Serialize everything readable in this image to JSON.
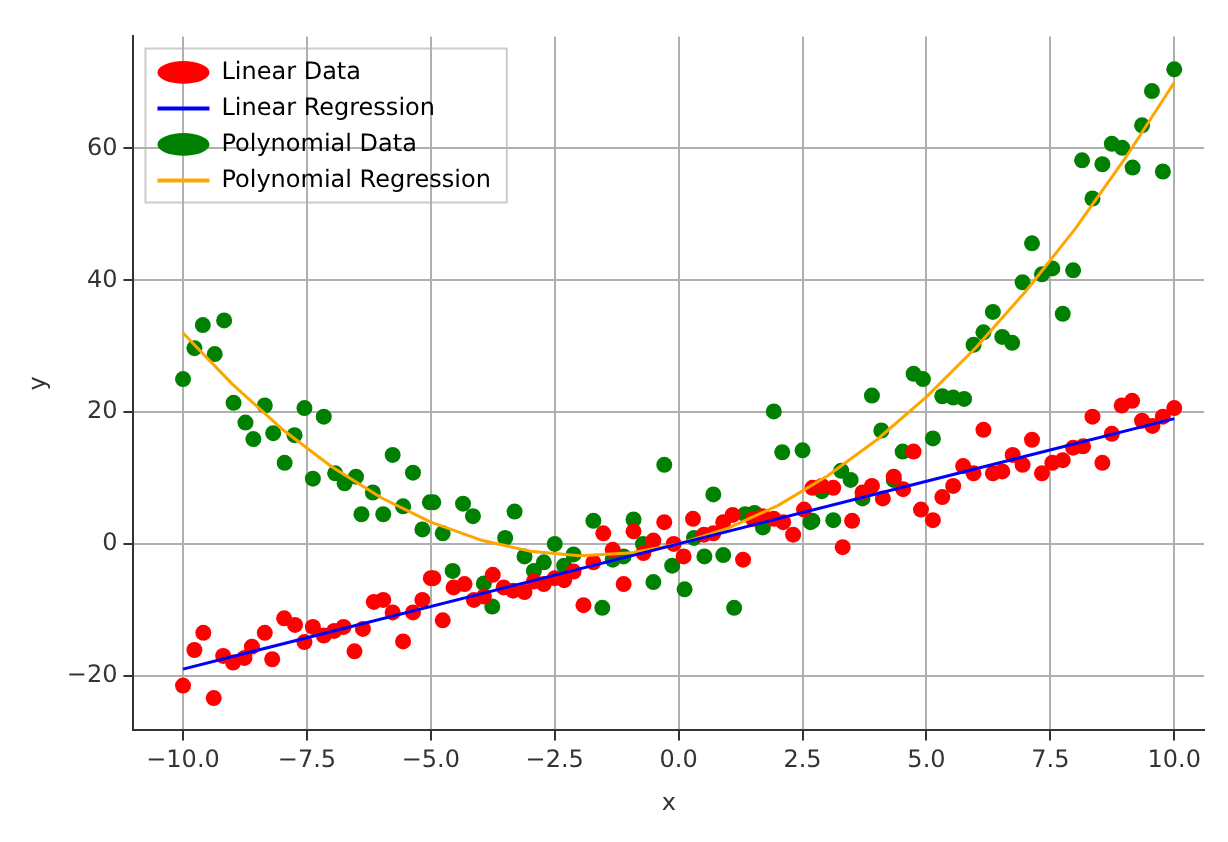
{
  "chart_data": {
    "type": "scatter",
    "xlabel": "x",
    "ylabel": "y",
    "xlim": [
      -11,
      10.6
    ],
    "ylim": [
      -28.3,
      77
    ],
    "xticks": [
      {
        "value": -10,
        "label": "−10.0"
      },
      {
        "value": -7.5,
        "label": "−7.5"
      },
      {
        "value": -5,
        "label": "−5.0"
      },
      {
        "value": -2.5,
        "label": "−2.5"
      },
      {
        "value": 0,
        "label": "0.0"
      },
      {
        "value": 2.5,
        "label": "2.5"
      },
      {
        "value": 5,
        "label": "5.0"
      },
      {
        "value": 7.5,
        "label": "7.5"
      },
      {
        "value": 10,
        "label": "10.0"
      }
    ],
    "yticks": [
      {
        "value": -20,
        "label": "−20"
      },
      0,
      20,
      40,
      60
    ],
    "grid": true,
    "legend": "top left",
    "series": [
      {
        "name": "Linear Data",
        "type": "scatter",
        "marker": "circle",
        "color": "#ff0000",
        "x": [
          -10,
          -9.77,
          -9.59,
          -9.38,
          -9.19,
          -8.99,
          -8.76,
          -8.61,
          -8.35,
          -8.2,
          -7.96,
          -7.74,
          -7.55,
          -7.38,
          -7.16,
          -6.95,
          -6.76,
          -6.54,
          -6.37,
          -6.15,
          -5.96,
          -5.77,
          -5.56,
          -5.36,
          -5.17,
          -5.0,
          -4.95,
          -4.76,
          -4.54,
          -4.32,
          -4.13,
          -3.93,
          -3.75,
          -3.53,
          -3.34,
          -3.11,
          -2.92,
          -2.72,
          -2.5,
          -2.31,
          -2.12,
          -1.92,
          -1.72,
          -1.52,
          -1.33,
          -1.11,
          -0.91,
          -0.71,
          -0.51,
          -0.29,
          -0.1,
          0.1,
          0.29,
          0.51,
          0.7,
          0.9,
          1.09,
          1.3,
          1.5,
          1.7,
          1.92,
          2.11,
          2.31,
          2.53,
          2.7,
          2.89,
          3.12,
          3.31,
          3.5,
          3.71,
          3.9,
          4.12,
          4.34,
          4.53,
          4.74,
          4.89,
          5.13,
          5.32,
          5.54,
          5.74,
          5.95,
          6.15,
          6.34,
          6.53,
          6.74,
          6.94,
          7.13,
          7.33,
          7.54,
          7.75,
          7.96,
          8.16,
          8.35,
          8.55,
          8.74,
          8.94,
          9.15,
          9.35,
          9.56,
          9.77,
          10.0
        ],
        "values": [
          -21.5,
          -16.1,
          -13.5,
          -23.4,
          -17.0,
          -18.0,
          -17.3,
          -15.6,
          -13.5,
          -17.5,
          -11.3,
          -12.3,
          -14.9,
          -12.6,
          -13.9,
          -13.2,
          -12.6,
          -16.3,
          -12.9,
          -8.8,
          -8.5,
          -10.4,
          -14.8,
          -10.4,
          -8.5,
          -5.2,
          -5.2,
          -11.6,
          -6.6,
          -6.1,
          -8.5,
          -8.0,
          -4.7,
          -6.6,
          -7.1,
          -7.3,
          -5.7,
          -6.1,
          -5.2,
          -5.5,
          -4.2,
          -9.3,
          -2.8,
          1.6,
          -0.9,
          -6.1,
          1.9,
          -1.4,
          0.5,
          3.3,
          0,
          -1.9,
          3.8,
          1.4,
          1.6,
          3.3,
          4.4,
          -2.4,
          3.8,
          4.2,
          3.8,
          3.3,
          1.4,
          5.2,
          8.5,
          8.8,
          8.5,
          -0.5,
          3.5,
          7.8,
          8.8,
          6.9,
          10.2,
          8.3,
          14.0,
          5.2,
          3.6,
          7.1,
          8.8,
          11.8,
          10.7,
          17.3,
          10.7,
          11.0,
          13.5,
          12.0,
          15.8,
          10.7,
          12.3,
          12.7,
          14.6,
          14.8,
          19.3,
          12.3,
          16.7,
          21.0,
          21.7,
          18.7,
          17.9,
          19.3,
          20.6
        ]
      },
      {
        "name": "Linear Regression",
        "type": "line",
        "marker": "none",
        "color": "#0000ff",
        "x": [
          -10,
          10
        ],
        "values": [
          -19,
          19
        ]
      },
      {
        "name": "Polynomial Data",
        "type": "scatter",
        "marker": "circle",
        "color": "#008000",
        "x": [
          -10,
          -9.77,
          -9.6,
          -9.36,
          -9.17,
          -8.98,
          -8.74,
          -8.58,
          -8.35,
          -8.18,
          -7.95,
          -7.75,
          -7.55,
          -7.38,
          -7.16,
          -6.93,
          -6.74,
          -6.51,
          -6.4,
          -6.17,
          -5.96,
          -5.77,
          -5.56,
          -5.36,
          -5.17,
          -5.02,
          -4.95,
          -4.76,
          -4.56,
          -4.35,
          -4.15,
          -3.93,
          -3.76,
          -3.5,
          -3.31,
          -3.11,
          -2.92,
          -2.72,
          -2.5,
          -2.31,
          -2.12,
          -1.72,
          -1.54,
          -1.33,
          -1.11,
          -0.91,
          -0.72,
          -0.51,
          -0.29,
          -0.13,
          0.12,
          0.31,
          0.52,
          0.7,
          0.9,
          1.12,
          1.34,
          1.53,
          1.7,
          1.92,
          2.09,
          2.5,
          2.66,
          2.7,
          2.89,
          3.12,
          3.28,
          3.47,
          3.71,
          3.9,
          4.09,
          4.34,
          4.52,
          4.74,
          4.93,
          5.13,
          5.32,
          5.54,
          5.76,
          5.95,
          6.15,
          6.34,
          6.53,
          6.73,
          6.94,
          7.13,
          7.33,
          7.54,
          7.75,
          7.96,
          8.14,
          8.35,
          8.55,
          8.74,
          8.95,
          9.16,
          9.35,
          9.55,
          9.77,
          10.0
        ],
        "values": [
          25.0,
          29.7,
          33.2,
          28.8,
          33.9,
          21.4,
          18.4,
          15.9,
          21.0,
          16.8,
          12.3,
          16.5,
          20.6,
          9.9,
          19.3,
          10.7,
          9.2,
          10.2,
          4.5,
          7.8,
          4.5,
          13.5,
          5.7,
          10.8,
          2.2,
          6.3,
          6.3,
          1.6,
          -4.1,
          6.1,
          4.2,
          -6.0,
          -9.5,
          0.9,
          4.9,
          -1.9,
          -4.1,
          -2.8,
          0,
          -3.3,
          -1.6,
          3.5,
          -9.7,
          -2.4,
          -1.9,
          3.7,
          0,
          -5.8,
          12.0,
          -3.3,
          -6.9,
          0.9,
          -1.9,
          7.5,
          -1.7,
          -9.7,
          4.5,
          4.7,
          2.5,
          20.1,
          13.9,
          14.2,
          3.3,
          3.5,
          8.0,
          3.6,
          11.1,
          9.7,
          6.9,
          22.5,
          17.2,
          9.7,
          14.0,
          25.8,
          25.0,
          16.0,
          22.4,
          22.2,
          22.0,
          30.2,
          32.1,
          35.2,
          31.4,
          30.5,
          39.7,
          45.6,
          40.9,
          41.8,
          34.9,
          41.5,
          58.2,
          52.4,
          57.6,
          60.7,
          60.1,
          57.1,
          63.5,
          68.7,
          56.5,
          72.0
        ]
      },
      {
        "name": "Polynomial Regression",
        "type": "line",
        "marker": "none",
        "color": "#ffa500",
        "x": [
          -10,
          -9,
          -8,
          -7,
          -6,
          -5,
          -4,
          -3,
          -2,
          -1,
          0,
          1,
          2,
          3,
          4,
          5,
          6,
          7,
          8,
          9,
          10
        ],
        "values": [
          32,
          24.2,
          17.4,
          11.7,
          7.0,
          3.3,
          0.6,
          -1.1,
          -1.8,
          -1.4,
          0,
          2.4,
          5.8,
          10.3,
          15.8,
          22.3,
          29.8,
          38.3,
          47.8,
          58.4,
          70
        ]
      }
    ]
  }
}
